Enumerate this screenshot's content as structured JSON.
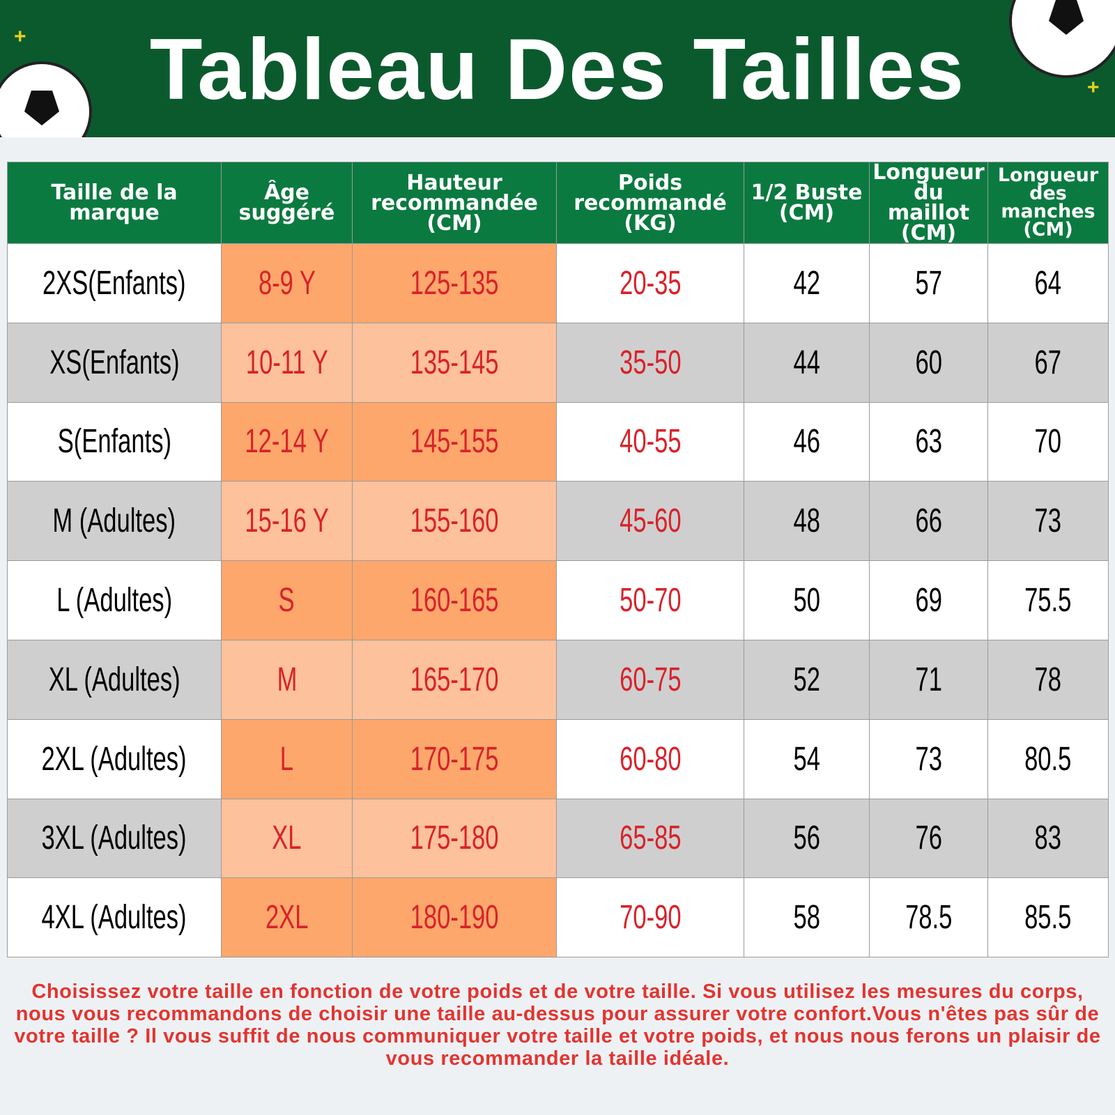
{
  "header": {
    "title": "Tableau Des Tailles"
  },
  "table": {
    "columns": [
      "Taille de la\nmarque",
      "Âge\nsuggéré",
      "Hauteur\nrecommandée\n(CM)",
      "Poids\nrecommandé\n(KG)",
      "1/2 Buste\n(CM)",
      "Longueur\ndu maillot\n(CM)",
      "Longueur\ndes\nmanches\n(CM)"
    ],
    "rows": [
      [
        "2XS(Enfants)",
        "8-9 Y",
        "125-135",
        "20-35",
        "42",
        "57",
        "64"
      ],
      [
        "XS(Enfants)",
        "10-11 Y",
        "135-145",
        "35-50",
        "44",
        "60",
        "67"
      ],
      [
        "S(Enfants)",
        "12-14 Y",
        "145-155",
        "40-55",
        "46",
        "63",
        "70"
      ],
      [
        "M (Adultes)",
        "15-16 Y",
        "155-160",
        "45-60",
        "48",
        "66",
        "73"
      ],
      [
        "L (Adultes)",
        "S",
        "160-165",
        "50-70",
        "50",
        "69",
        "75.5"
      ],
      [
        "XL (Adultes)",
        "M",
        "165-170",
        "60-75",
        "52",
        "71",
        "78"
      ],
      [
        "2XL (Adultes)",
        "L",
        "170-175",
        "60-80",
        "54",
        "73",
        "80.5"
      ],
      [
        "3XL (Adultes)",
        "XL",
        "175-180",
        "65-85",
        "56",
        "76",
        "83"
      ],
      [
        "4XL (Adultes)",
        "2XL",
        "180-190",
        "70-90",
        "58",
        "78.5",
        "85.5"
      ]
    ]
  },
  "footer": {
    "note": "Choisissez votre taille en fonction de votre poids et de votre taille. Si vous utilisez les mesures du corps, nous vous recommandons de choisir une taille au-dessus pour assurer votre confort.Vous n'êtes pas sûr de votre taille ? Il vous suffit de nous communiquer votre taille et votre poids, et nous nous ferons un plaisir de vous recommander la taille idéale."
  }
}
